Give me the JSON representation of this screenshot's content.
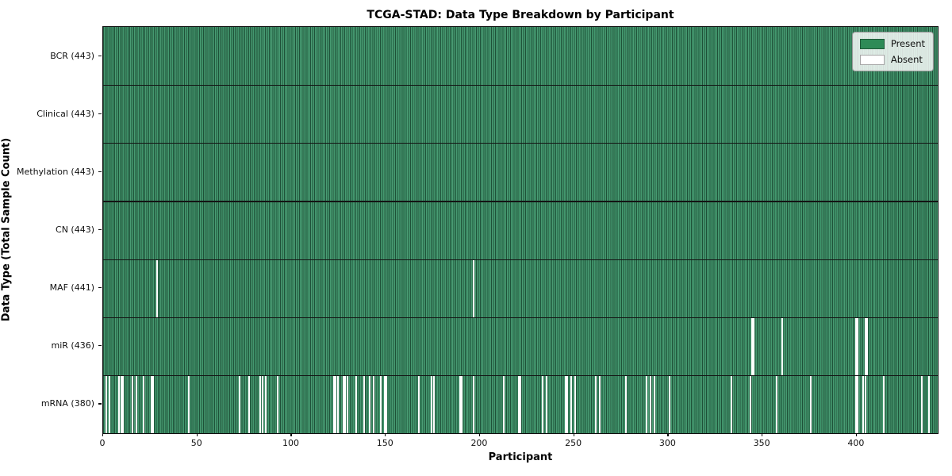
{
  "title": "TCGA-STAD: Data Type Breakdown by Participant",
  "x_axis_label": "Participant",
  "y_axis_label": "Data Type (Total Sample Count)",
  "legend": {
    "present_label": "Present",
    "absent_label": "Absent"
  },
  "colors": {
    "present": "#2E8B57",
    "absent": "#FFFFFF",
    "row_divider": "#141414"
  },
  "x_ticks": [
    0,
    50,
    100,
    150,
    200,
    250,
    300,
    350,
    400
  ],
  "chart_data": {
    "type": "heatmap",
    "title": "TCGA-STAD: Data Type Breakdown by Participant",
    "xlabel": "Participant",
    "ylabel": "Data Type (Total Sample Count)",
    "x_range": [
      0,
      443
    ],
    "n_participants": 443,
    "legend_entries": [
      "Present",
      "Absent"
    ],
    "legend_position": "upper right",
    "grid": false,
    "rows": [
      {
        "label": "BCR (443)",
        "data_type": "BCR",
        "present_count": 443,
        "absent_participants": []
      },
      {
        "label": "Clinical (443)",
        "data_type": "Clinical",
        "present_count": 443,
        "absent_participants": []
      },
      {
        "label": "Methylation (443)",
        "data_type": "Methylation",
        "present_count": 443,
        "absent_participants": []
      },
      {
        "label": "CN (443)",
        "data_type": "CN",
        "present_count": 443,
        "absent_participants": []
      },
      {
        "label": "MAF (441)",
        "data_type": "MAF",
        "present_count": 441,
        "absent_participants": [
          28,
          196
        ]
      },
      {
        "label": "miR (436)",
        "data_type": "miR",
        "present_count": 436,
        "absent_participants": [
          344,
          345,
          360,
          399,
          400,
          404,
          405
        ]
      },
      {
        "label": "mRNA (380)",
        "data_type": "mRNA",
        "present_count": 380,
        "absent_participants": [
          1,
          3,
          8,
          9,
          10,
          15,
          17,
          21,
          25,
          26,
          45,
          72,
          77,
          83,
          84,
          86,
          92,
          122,
          123,
          124,
          127,
          128,
          129,
          134,
          138,
          141,
          143,
          147,
          149,
          150,
          167,
          174,
          175,
          189,
          190,
          196,
          212,
          220,
          221,
          233,
          235,
          245,
          246,
          248,
          250,
          261,
          263,
          277,
          288,
          290,
          292,
          300,
          333,
          343,
          357,
          375,
          399,
          400,
          403,
          404,
          414,
          434,
          438
        ]
      }
    ]
  }
}
